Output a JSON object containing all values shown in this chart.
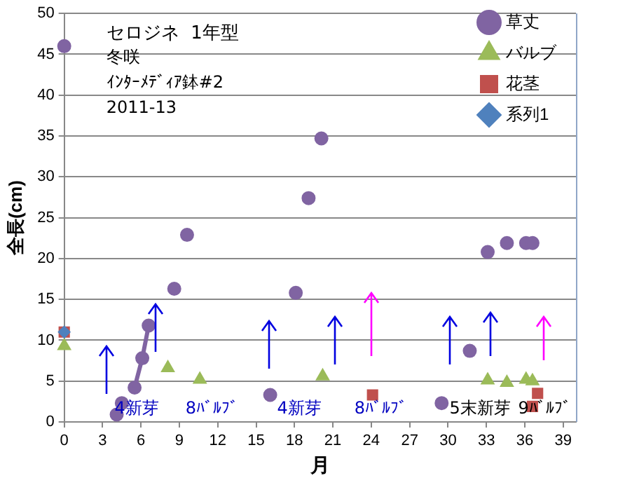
{
  "chart_data": {
    "type": "scatter",
    "title": "セロジネ  1年型",
    "subtitle": "冬咲",
    "xlabel": "月",
    "ylabel": "全長(cm)",
    "xlim": [
      0,
      40
    ],
    "xticks": [
      0,
      3,
      6,
      9,
      12,
      15,
      18,
      21,
      24,
      27,
      30,
      33,
      36,
      39
    ],
    "ylim": [
      0,
      50
    ],
    "yticks": [
      0,
      5,
      10,
      15,
      20,
      25,
      30,
      35,
      40,
      45,
      50
    ],
    "grid": "y",
    "legend": "top right",
    "series": [
      {
        "name": "草丈",
        "color": "#8064a2",
        "marker": "circle",
        "x": [
          0,
          4.1,
          4.5,
          5.5,
          6.1,
          6.6,
          8.6,
          9.6,
          16.1,
          18.1,
          19.1,
          20.1,
          29.5,
          31.7,
          33.1,
          34.6,
          36.1,
          36.6
        ],
        "values": [
          46,
          0.9,
          2.3,
          4.2,
          7.8,
          11.8,
          16.3,
          22.9,
          3.3,
          15.8,
          27.4,
          34.7,
          2.3,
          8.7,
          20.8,
          21.9,
          21.9,
          21.9
        ]
      },
      {
        "type": "line",
        "color": "#8064a2",
        "marker": "none",
        "x": [
          5.5,
          6.1,
          6.6
        ],
        "values": [
          4.2,
          7.8,
          11.8
        ]
      },
      {
        "name": "バルブ",
        "color": "#9bbb59",
        "marker": "triangle",
        "x": [
          0,
          8.1,
          10.6,
          20.2,
          33.1,
          34.6,
          36.1,
          36.6
        ],
        "values": [
          9.3,
          6.6,
          5.2,
          5.6,
          5.1,
          4.8,
          5.2,
          5.0
        ]
      },
      {
        "name": "花茎",
        "color": "#c0504d",
        "marker": "square",
        "x": [
          0,
          24.1,
          36.6,
          37
        ],
        "values": [
          11,
          3.3,
          1.9,
          3.5
        ]
      },
      {
        "name": "系列1",
        "color": "#4f81bd",
        "marker": "diamond",
        "x": [
          0
        ],
        "values": [
          11
        ]
      }
    ],
    "annotations": [
      "ｲﾝﾀｰﾒﾃﾞｨｱ鉢#2",
      "2011-13",
      "4新芽",
      "8ﾊﾞﾙﾌﾞ",
      "4新芽",
      "8ﾊﾞﾙﾌﾞ",
      "5末新芽",
      "9ﾊﾞﾙﾌﾞ"
    ]
  }
}
